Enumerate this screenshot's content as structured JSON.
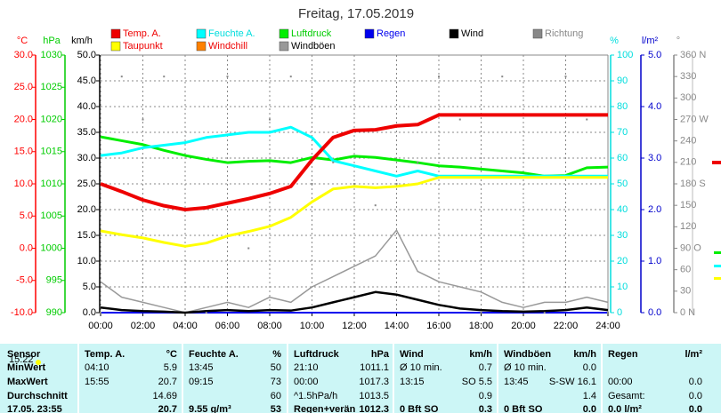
{
  "chart_data": {
    "type": "line",
    "title": "Freitag, 17.05.2019",
    "time_label": "15:22",
    "x": [
      0,
      1,
      2,
      3,
      4,
      5,
      6,
      7,
      8,
      9,
      10,
      11,
      12,
      13,
      14,
      15,
      16,
      17,
      18,
      19,
      20,
      21,
      22,
      23,
      24
    ],
    "xlim": [
      0,
      24
    ],
    "xticks": [
      {
        "value": 0,
        "label": "00:00"
      },
      {
        "value": 2,
        "label": "02:00"
      },
      {
        "value": 4,
        "label": "04:00"
      },
      {
        "value": 6,
        "label": "06:00"
      },
      {
        "value": 8,
        "label": "08:00"
      },
      {
        "value": 10,
        "label": "10:00"
      },
      {
        "value": 12,
        "label": "12:00"
      },
      {
        "value": 14,
        "label": "14:00"
      },
      {
        "value": 16,
        "label": "16:00"
      },
      {
        "value": 18,
        "label": "18:00"
      },
      {
        "value": 20,
        "label": "20:00"
      },
      {
        "value": 22,
        "label": "22:00"
      },
      {
        "value": 24,
        "label": "24:00"
      }
    ],
    "grid": true,
    "axes": {
      "temp": {
        "label": "°C",
        "color": "#ff0000",
        "lim": [
          -10,
          30
        ],
        "ticks": [
          {
            "value": 30,
            "label": "30.0"
          },
          {
            "value": 25,
            "label": "25.0"
          },
          {
            "value": 20,
            "label": "20.0"
          },
          {
            "value": 15,
            "label": "15.0"
          },
          {
            "value": 10,
            "label": "10.0"
          },
          {
            "value": 5,
            "label": "5.0"
          },
          {
            "value": 0,
            "label": "0.0"
          },
          {
            "value": -5,
            "label": "-5.0"
          },
          {
            "value": -10,
            "label": "-10.0"
          }
        ]
      },
      "hpa": {
        "label": "hPa",
        "color": "#00cc00",
        "lim": [
          990,
          1030
        ],
        "ticks": [
          1030,
          1025,
          1020,
          1015,
          1010,
          1005,
          1000,
          995,
          990
        ]
      },
      "kmh": {
        "label": "km/h",
        "color": "#000000",
        "lim": [
          0,
          50
        ],
        "ticks": [
          {
            "value": 50,
            "label": "50.0"
          },
          {
            "value": 45,
            "label": "45.0"
          },
          {
            "value": 40,
            "label": "40.0"
          },
          {
            "value": 35,
            "label": "35.0"
          },
          {
            "value": 30,
            "label": "30.0"
          },
          {
            "value": 25,
            "label": "25.0"
          },
          {
            "value": 20,
            "label": "20.0"
          },
          {
            "value": 15,
            "label": "15.0"
          },
          {
            "value": 10,
            "label": "10.0"
          },
          {
            "value": 5,
            "label": "5.0"
          },
          {
            "value": 0,
            "label": "0.0"
          }
        ]
      },
      "pct": {
        "label": "%",
        "color": "#00dddd",
        "lim": [
          0,
          100
        ],
        "ticks": [
          100,
          90,
          80,
          70,
          60,
          50,
          40,
          30,
          20,
          10,
          0
        ]
      },
      "rain": {
        "label": "l/m²",
        "color": "#0000cc",
        "lim": [
          0,
          5
        ],
        "ticks": [
          {
            "value": 5,
            "label": "5.0"
          },
          {
            "value": 4,
            "label": "4.0"
          },
          {
            "value": 3,
            "label": "3.0"
          },
          {
            "value": 2,
            "label": "2.0"
          },
          {
            "value": 1,
            "label": "1.0"
          },
          {
            "value": 0,
            "label": "0.0"
          }
        ]
      },
      "dir": {
        "label": "°",
        "color": "#888888",
        "lim": [
          0,
          360
        ],
        "ticks": [
          {
            "value": 360,
            "label": "360 N"
          },
          330,
          300,
          {
            "value": 270,
            "label": "270 W"
          },
          240,
          210,
          {
            "value": 180,
            "label": "180 S"
          },
          150,
          120,
          {
            "value": 90,
            "label": "90 O"
          },
          60,
          30,
          {
            "value": 0,
            "label": "0 N"
          }
        ]
      }
    },
    "series": [
      {
        "name": "Temp. A.",
        "color": "#ee0000",
        "label_color": "#ee0000",
        "axis": "temp",
        "style": "line",
        "width": 4,
        "values": [
          10,
          8.8,
          7.5,
          6.6,
          6,
          6.3,
          7,
          7.7,
          8.5,
          9.6,
          13.7,
          17.2,
          18.3,
          18.4,
          19,
          19.2,
          20.7,
          20.7,
          20.7,
          20.7,
          20.7,
          20.7,
          20.7,
          20.7,
          20.7
        ]
      },
      {
        "name": "Feuchte A.",
        "color": "#00ffff",
        "label_color": "#00dddd",
        "axis": "pct",
        "style": "line",
        "width": 3,
        "values": [
          61,
          62,
          64,
          65,
          66,
          68,
          69,
          70,
          70,
          72,
          68,
          59,
          57,
          55,
          53,
          55,
          53,
          53,
          53,
          53,
          53,
          53,
          53,
          53,
          53
        ]
      },
      {
        "name": "Luftdruck",
        "color": "#00ee00",
        "label_color": "#00cc00",
        "axis": "hpa",
        "style": "line",
        "width": 3,
        "values": [
          1017.3,
          1016.7,
          1016.1,
          1015.2,
          1014.4,
          1013.8,
          1013.3,
          1013.5,
          1013.6,
          1013.3,
          1014.1,
          1013.7,
          1014.3,
          1014.1,
          1013.7,
          1013.3,
          1012.8,
          1012.6,
          1012.3,
          1012.0,
          1011.7,
          1011.2,
          1011.3,
          1012.5,
          1012.6
        ]
      },
      {
        "name": "Regen",
        "color": "#0000ee",
        "label_color": "#0000ee",
        "axis": "rain",
        "style": "line",
        "width": 2,
        "values": [
          0,
          0,
          0,
          0,
          0,
          0,
          0,
          0,
          0,
          0,
          0,
          0,
          0,
          0,
          0,
          0,
          0,
          0,
          0,
          0,
          0,
          0,
          0,
          0,
          0
        ]
      },
      {
        "name": "Wind",
        "color": "#000000",
        "label_color": "#000000",
        "axis": "kmh",
        "style": "line",
        "width": 2.5,
        "values": [
          1,
          0.5,
          0.3,
          0.2,
          0,
          0.3,
          0.5,
          0.3,
          0.5,
          0.4,
          1,
          2,
          3,
          4,
          3.5,
          2.5,
          1.5,
          0.8,
          0.5,
          0.3,
          0.2,
          0.3,
          0.5,
          1,
          0.5
        ]
      },
      {
        "name": "Richtung",
        "color": "#888888",
        "label_color": "#888888",
        "axis": "dir",
        "style": "dots",
        "width": 2,
        "values": [
          0,
          330,
          270,
          330,
          null,
          0,
          330,
          90,
          270,
          330,
          180,
          210,
          180,
          150,
          180,
          210,
          330,
          270,
          0,
          330,
          null,
          0,
          330,
          270,
          0
        ]
      },
      {
        "name": "Taupunkt",
        "color": "#ffff00",
        "label_color": "#ee0000",
        "axis": "temp",
        "style": "line",
        "width": 3,
        "values": [
          2.7,
          2.1,
          1.6,
          0.9,
          0.3,
          0.8,
          1.9,
          2.6,
          3.4,
          4.8,
          7.2,
          9.2,
          9.6,
          9.4,
          9.6,
          10,
          11,
          11,
          11,
          11,
          11,
          11,
          11,
          11,
          11
        ]
      },
      {
        "name": "Windchill",
        "color": "#ff8000",
        "label_color": "#ee0000",
        "axis": "temp",
        "style": "line",
        "width": 2,
        "values": [
          10,
          8.8,
          7.5,
          6.6,
          6,
          6.3,
          7,
          7.7,
          8.5,
          9.6,
          13.7,
          17.2,
          18.3,
          18.4,
          19,
          19.2,
          20.7,
          20.7,
          20.7,
          20.7,
          20.7,
          20.7,
          20.7,
          20.7,
          20.7
        ]
      },
      {
        "name": "Windböen",
        "color": "#999999",
        "label_color": "#000000",
        "axis": "kmh",
        "style": "line",
        "width": 1.5,
        "values": [
          6,
          3,
          2,
          1,
          0,
          1,
          2,
          1,
          3,
          2,
          5,
          7,
          9,
          11,
          16,
          8,
          6,
          5,
          4,
          2,
          1,
          2,
          2,
          3,
          2
        ]
      }
    ]
  },
  "table": {
    "header": [
      "Sensor",
      "Temp. A.",
      "°C",
      "Feuchte A.",
      "%",
      "Luftdruck",
      "hPa",
      "Wind",
      "km/h",
      "Windböen",
      "km/h",
      "Regen",
      "l/m²"
    ],
    "rows": [
      [
        "MinWert",
        "04:10",
        "5.9",
        "13:45",
        "50",
        "21:10",
        "1011.1",
        "Ø 10 min.",
        "0.7",
        "Ø 10 min.",
        "0.0",
        null,
        null
      ],
      [
        "MaxWert",
        "15:55",
        "20.7",
        "09:15",
        "73",
        "00:00",
        "1017.3",
        "13:15",
        "SO 5.5",
        "13:45",
        "S-SW 16.1",
        "00:00",
        "0.0"
      ],
      [
        "Durchschnitt",
        null,
        "14.69",
        null,
        "60",
        "^1.5hPa/h",
        "1013.5",
        null,
        "0.9",
        null,
        "1.4",
        "Gesamt:",
        "0.0"
      ],
      [
        "17.05. 23:55",
        null,
        "20.7",
        "9.55 g/m³",
        "53",
        "Regen+verän",
        "1012.3",
        "0 Bft SO",
        "0.3",
        "0 Bft SO",
        "0.0",
        "0.0 l/m²",
        "0.0"
      ]
    ]
  }
}
